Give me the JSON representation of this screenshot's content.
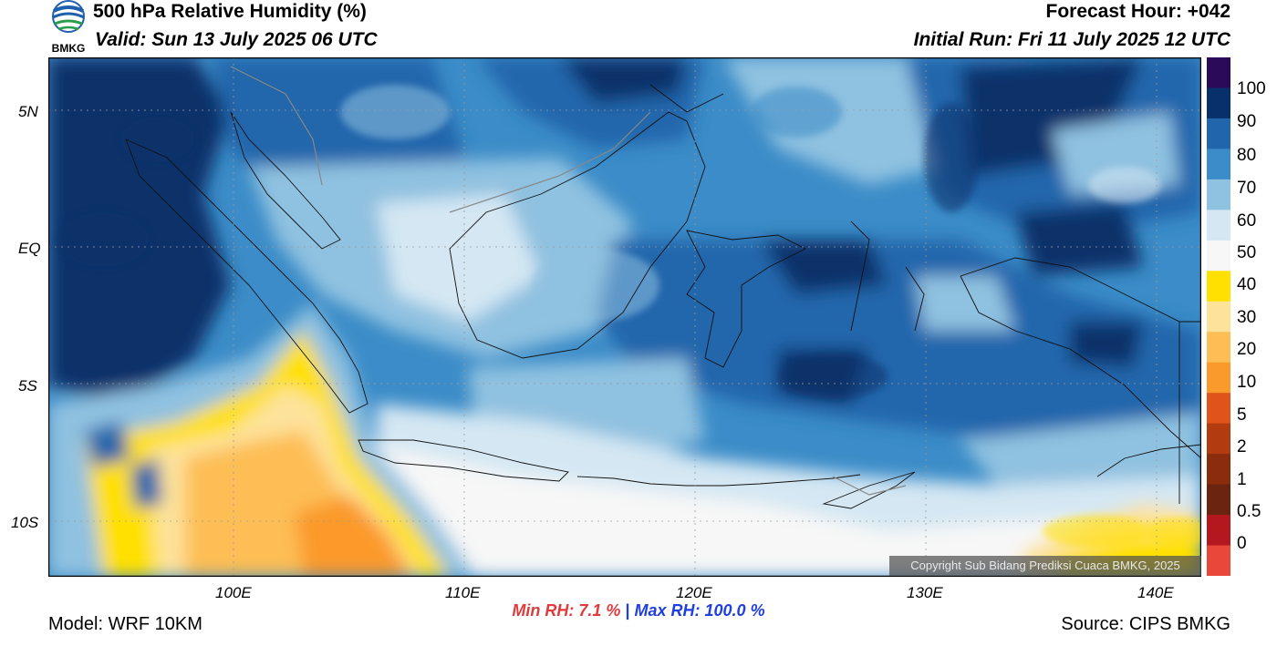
{
  "header": {
    "title": "500 hPa Relative Humidity (%)",
    "valid": "Valid: Sun 13 July 2025 06 UTC",
    "forecast_hour": "Forecast Hour: +042",
    "initial_run": "Initial Run: Fri 11 July 2025 12 UTC",
    "logo_text": "BMKG"
  },
  "map": {
    "lat_labels": [
      "5N",
      "EQ",
      "5S",
      "10S"
    ],
    "lon_labels": [
      "100E",
      "110E",
      "120E",
      "130E",
      "140E"
    ],
    "extent": {
      "lon_min": 92,
      "lon_max": 142,
      "lat_min": -12,
      "lat_max": 7
    },
    "copyright": "Copyright Sub Bidang Prediksi Cuaca BMKG, 2025"
  },
  "colorbar": {
    "labels": [
      "100",
      "90",
      "80",
      "70",
      "60",
      "50",
      "40",
      "30",
      "20",
      "10",
      "5",
      "2",
      "1",
      "0.5",
      "0"
    ],
    "colors_top_to_bottom": [
      "#2c0a5a",
      "#08306b",
      "#2166ac",
      "#3b8cc8",
      "#8fc1e0",
      "#d4e7f3",
      "#f7f7f7",
      "#ffe000",
      "#fde29a",
      "#fdbe55",
      "#fb9a2c",
      "#e0531a",
      "#b33b10",
      "#8a2d0c",
      "#6b2410",
      "#b5171e",
      "#e8473a"
    ]
  },
  "stats": {
    "min_rh": "Min RH:   7.1 %",
    "separator": "|",
    "max_rh": "Max RH: 100.0 %"
  },
  "footer": {
    "model": "Model: WRF 10KM",
    "source": "Source: CIPS BMKG"
  }
}
